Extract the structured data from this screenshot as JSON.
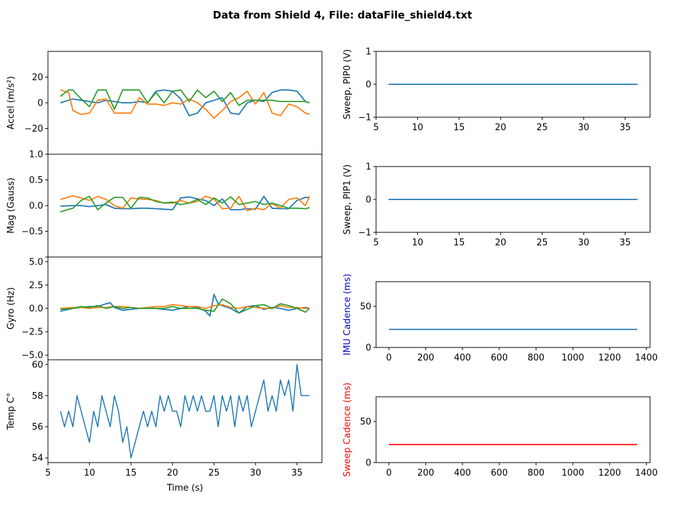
{
  "figure": {
    "title": "Data from Shield 4, File: dataFile_shield4.txt"
  },
  "colors": {
    "c1": "#1f77b4",
    "c2": "#ff7f0e",
    "c3": "#2ca02c",
    "red": "#ff0000",
    "blue": "#0000cc"
  },
  "chart_data": [
    {
      "id": "accel",
      "type": "line",
      "ylabel": "Accel (m/s²)",
      "xlim": [
        5,
        38
      ],
      "ylim": [
        -40,
        40
      ],
      "yticks": [
        -20,
        0,
        20
      ],
      "series": [
        {
          "x": [
            6.5,
            7.5,
            8,
            9,
            10,
            11,
            12,
            13,
            14,
            15,
            16,
            17,
            18,
            19,
            20,
            21,
            22,
            23,
            24,
            25,
            26,
            27,
            28,
            29,
            30,
            31,
            32,
            33,
            34,
            35,
            36,
            36.5
          ],
          "y": [
            0,
            2,
            3,
            2,
            1,
            0,
            2,
            1,
            0,
            0,
            1,
            0,
            9,
            10,
            9,
            3,
            -10,
            -8,
            0,
            2,
            4,
            -8,
            -9,
            0,
            2,
            1,
            8,
            10,
            10,
            9,
            1,
            0
          ]
        },
        {
          "x": [
            6.5,
            7.5,
            8,
            9,
            10,
            11,
            12,
            13,
            14,
            15,
            16,
            17,
            18,
            19,
            20,
            21,
            22,
            23,
            24,
            25,
            26,
            27,
            28,
            29,
            30,
            31,
            32,
            33,
            34,
            35,
            36,
            36.5
          ],
          "y": [
            10,
            8,
            -6,
            -9,
            -8,
            2,
            3,
            -8,
            -8,
            -8,
            4,
            -1,
            -1,
            -2,
            0,
            -1,
            3,
            0,
            -5,
            -12,
            -6,
            1,
            4,
            9,
            -1,
            8,
            -8,
            -10,
            -1,
            -3,
            -8,
            -9
          ]
        },
        {
          "x": [
            6.5,
            7.5,
            8,
            9,
            10,
            11,
            12,
            13,
            14,
            15,
            16,
            17,
            18,
            19,
            20,
            21,
            22,
            23,
            24,
            25,
            26,
            27,
            28,
            29,
            30,
            31,
            32,
            33,
            34,
            35,
            36,
            36.5
          ],
          "y": [
            5,
            10,
            10,
            3,
            -3,
            10,
            10,
            -5,
            10,
            10,
            10,
            0,
            8,
            0,
            9,
            10,
            1,
            10,
            4,
            9,
            1,
            8,
            -2,
            2,
            2,
            2,
            2,
            1,
            1,
            1,
            1,
            0
          ]
        }
      ]
    },
    {
      "id": "mag",
      "type": "line",
      "ylabel": "Mag (Gauss)",
      "xlim": [
        5,
        38
      ],
      "ylim": [
        -1,
        1
      ],
      "yticks": [
        -1.0,
        -0.5,
        0.0,
        0.5,
        1.0
      ],
      "ytick_labels": [
        "",
        "−0.5",
        "0.0",
        "0.5",
        "1.0"
      ],
      "series": [
        {
          "x": [
            6.5,
            8,
            9,
            10,
            11,
            12,
            13,
            14,
            15,
            16,
            17,
            18,
            19,
            20,
            21,
            22,
            23,
            24,
            25,
            26,
            27,
            28,
            29,
            30,
            31,
            32,
            33,
            34,
            35,
            36,
            36.5
          ],
          "y": [
            -0.01,
            0,
            0,
            -0.02,
            0,
            0.02,
            -0.05,
            -0.06,
            -0.06,
            -0.05,
            -0.05,
            -0.06,
            -0.07,
            -0.08,
            0.15,
            0.17,
            0.13,
            0.1,
            0,
            0.13,
            -0.08,
            -0.08,
            -0.06,
            -0.07,
            0.18,
            -0.05,
            -0.06,
            -0.06,
            0.1,
            0.16,
            0.16
          ]
        },
        {
          "x": [
            6.5,
            8,
            9,
            10,
            11,
            12,
            13,
            14,
            15,
            16,
            17,
            18,
            19,
            20,
            21,
            22,
            23,
            24,
            25,
            26,
            27,
            28,
            29,
            30,
            31,
            32,
            33,
            34,
            35,
            36,
            36.5
          ],
          "y": [
            0.12,
            0.19,
            0.15,
            0.1,
            0.18,
            0.12,
            0,
            -0.05,
            0.15,
            0.13,
            0.12,
            0.1,
            0.05,
            0.05,
            0.1,
            0.05,
            0.08,
            0.18,
            0.13,
            -0.06,
            -0.05,
            0.18,
            -0.1,
            -0.05,
            -0.08,
            0.04,
            -0.05,
            0.12,
            0.15,
            0.0,
            0.18
          ]
        },
        {
          "x": [
            6.5,
            8,
            9,
            10,
            11,
            12,
            13,
            14,
            15,
            16,
            17,
            18,
            19,
            20,
            21,
            22,
            23,
            24,
            25,
            26,
            27,
            28,
            29,
            30,
            31,
            32,
            33,
            34,
            35,
            36,
            36.5
          ],
          "y": [
            -0.12,
            -0.05,
            0.1,
            0.18,
            -0.08,
            0.05,
            0.16,
            0.16,
            -0.05,
            0.16,
            0.15,
            0.08,
            0.05,
            0.07,
            0.02,
            0.05,
            0.12,
            0.02,
            0.15,
            0.05,
            0.17,
            0.02,
            0.05,
            0.08,
            0.02,
            0.05,
            0.0,
            -0.05,
            -0.05,
            -0.06,
            -0.04
          ]
        }
      ]
    },
    {
      "id": "gyro",
      "type": "line",
      "ylabel": "Gyro (Hz)",
      "xlim": [
        5,
        38
      ],
      "ylim": [
        -5.5,
        5.5
      ],
      "yticks": [
        -5.0,
        -2.5,
        0.0,
        2.5,
        5.0
      ],
      "ytick_labels": [
        "−5.0",
        "−2.5",
        "0.0",
        "2.5",
        "5.0"
      ],
      "series": [
        {
          "x": [
            6.5,
            7,
            8,
            9,
            10,
            11,
            12,
            12.5,
            13,
            14,
            15,
            16,
            17,
            18,
            19,
            20,
            21,
            22,
            23,
            24,
            24.5,
            25,
            25.5,
            26,
            27,
            28,
            29,
            30,
            31,
            32,
            33,
            34,
            35,
            36,
            36.5
          ],
          "y": [
            -0.3,
            -0.2,
            0,
            0.1,
            0.2,
            0.2,
            0.5,
            0.6,
            0.1,
            -0.2,
            -0.1,
            0,
            0.1,
            0,
            -0.1,
            -0.2,
            0,
            0.2,
            0.1,
            -0.3,
            -0.8,
            1.5,
            0.5,
            0.3,
            0,
            -0.5,
            0.2,
            0.3,
            -0.1,
            0.1,
            0,
            -0.2,
            0,
            0.1,
            0
          ]
        },
        {
          "x": [
            6.5,
            8,
            9,
            10,
            11,
            12,
            13,
            14,
            15,
            16,
            17,
            18,
            19,
            20,
            21,
            22,
            23,
            24,
            25,
            26,
            27,
            28,
            29,
            30,
            31,
            32,
            33,
            34,
            35,
            36,
            36.5
          ],
          "y": [
            0,
            0.1,
            0.1,
            0,
            0.1,
            0.1,
            0.2,
            0.2,
            0.1,
            0,
            0.1,
            0.2,
            0.2,
            0.4,
            0.3,
            0.2,
            0.2,
            0,
            0.3,
            0.4,
            0.1,
            0,
            0.2,
            0.1,
            0,
            0,
            0.3,
            0.1,
            0.1,
            0,
            0
          ]
        },
        {
          "x": [
            6.5,
            8,
            9,
            10,
            11,
            12,
            13,
            14,
            15,
            16,
            17,
            18,
            19,
            20,
            21,
            22,
            23,
            24,
            25,
            26,
            27,
            28,
            29,
            30,
            31,
            32,
            33,
            34,
            35,
            36,
            36.5
          ],
          "y": [
            -0.1,
            0,
            0.2,
            0.1,
            0.3,
            0,
            0.2,
            0,
            0.1,
            0,
            0,
            0,
            0,
            0.2,
            0,
            0,
            0,
            -0.2,
            -0.3,
            1.0,
            0.5,
            -0.5,
            -0.1,
            0.3,
            0.4,
            0,
            0.5,
            0.3,
            0,
            -0.4,
            0
          ]
        }
      ]
    },
    {
      "id": "temp",
      "type": "line",
      "ylabel": "Temp C°",
      "xlabel": "Time (s)",
      "xlim": [
        5,
        38
      ],
      "ylim": [
        53.7,
        60.3
      ],
      "yticks": [
        54,
        56,
        58,
        60
      ],
      "xticks": [
        5,
        10,
        15,
        20,
        25,
        30,
        35
      ],
      "series": [
        {
          "x": [
            6.5,
            7,
            7.5,
            8,
            8.5,
            9,
            9.5,
            10,
            10.5,
            11,
            11.5,
            12,
            12.5,
            13,
            13.5,
            14,
            14.5,
            15,
            15.5,
            16,
            16.5,
            17,
            17.5,
            18,
            18.5,
            19,
            19.5,
            20,
            20.5,
            21,
            21.5,
            22,
            22.5,
            23,
            23.5,
            24,
            24.5,
            25,
            25.5,
            26,
            26.5,
            27,
            27.5,
            28,
            28.5,
            29,
            29.5,
            30,
            30.5,
            31,
            31.5,
            32,
            32.5,
            33,
            33.5,
            34,
            34.5,
            35,
            35.5,
            36,
            36.5
          ],
          "y": [
            57,
            56,
            57,
            56,
            58,
            57,
            56,
            55,
            57,
            56,
            58,
            57,
            56,
            58,
            57,
            55,
            56,
            54,
            55,
            56,
            57,
            56,
            57,
            56,
            58,
            57,
            58,
            57,
            57,
            56,
            58,
            57,
            58,
            57,
            58,
            57,
            57,
            58,
            56,
            58,
            57,
            58,
            56,
            58,
            57,
            58,
            56,
            57,
            58,
            59,
            57,
            58,
            57,
            59,
            58,
            59,
            57,
            60,
            58,
            58,
            58
          ]
        }
      ]
    },
    {
      "id": "pip0",
      "type": "line",
      "ylabel": "Sweep, PIP0 (V)",
      "xlim": [
        5,
        38
      ],
      "ylim": [
        -1,
        1
      ],
      "yticks": [
        -1,
        0,
        1
      ],
      "ytick_labels": [
        "−1",
        "0",
        "1"
      ],
      "xticks": [
        5,
        10,
        15,
        20,
        25,
        30,
        35
      ],
      "series": [
        {
          "x": [
            6.5,
            36.5
          ],
          "y": [
            0,
            0
          ]
        }
      ]
    },
    {
      "id": "pip1",
      "type": "line",
      "ylabel": "Sweep, PIP1 (V)",
      "xlim": [
        5,
        38
      ],
      "ylim": [
        -1,
        1
      ],
      "yticks": [
        -1,
        0,
        1
      ],
      "ytick_labels": [
        "−1",
        "0",
        "1"
      ],
      "xticks": [
        5,
        10,
        15,
        20,
        25,
        30,
        35
      ],
      "series": [
        {
          "x": [
            6.5,
            36.5
          ],
          "y": [
            0,
            0
          ]
        }
      ]
    },
    {
      "id": "imu_cadence",
      "type": "line",
      "ylabel": "IMU Cadence (ms)",
      "xlim": [
        -70,
        1420
      ],
      "ylim": [
        0,
        80
      ],
      "yticks": [
        0,
        50
      ],
      "xticks": [
        0,
        200,
        400,
        600,
        800,
        1000,
        1200,
        1400
      ],
      "series": [
        {
          "x": [
            0,
            1350
          ],
          "y": [
            22,
            22
          ]
        }
      ]
    },
    {
      "id": "sweep_cadence",
      "type": "line",
      "ylabel": "Sweep Cadence (ms)",
      "xlim": [
        -70,
        1420
      ],
      "ylim": [
        0,
        80
      ],
      "yticks": [
        0,
        50
      ],
      "xticks": [
        0,
        200,
        400,
        600,
        800,
        1000,
        1200,
        1400
      ],
      "series": [
        {
          "x": [
            0,
            1350
          ],
          "y": [
            22,
            22
          ]
        }
      ]
    }
  ]
}
